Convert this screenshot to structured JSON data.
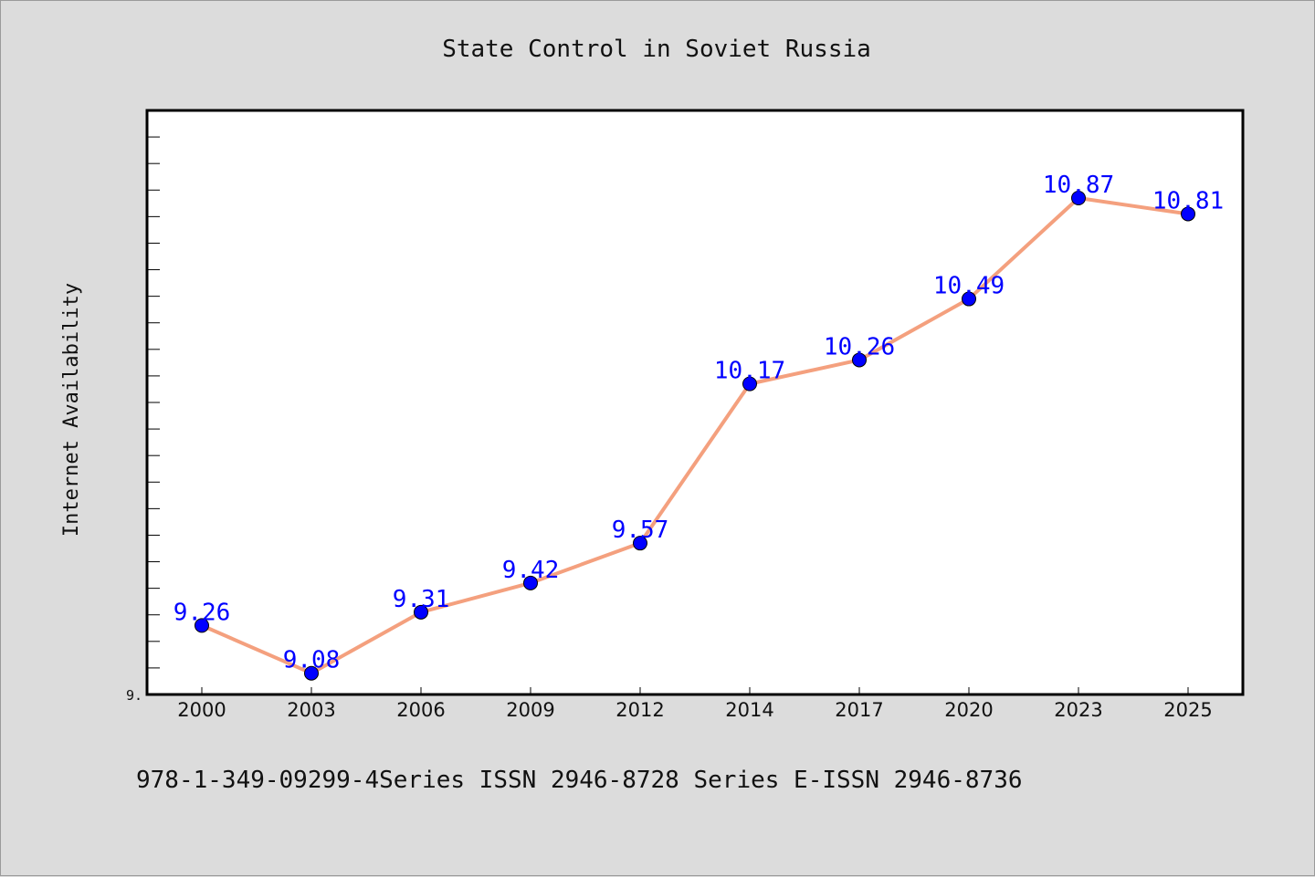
{
  "chart_data": {
    "type": "line",
    "title": "State Control in Soviet Russia",
    "xlabel": "",
    "ylabel": "Internet Availability",
    "categories": [
      "2000",
      "2003",
      "2006",
      "2009",
      "2012",
      "2014",
      "2017",
      "2020",
      "2023",
      "2025"
    ],
    "series": [
      {
        "values": [
          9.26,
          9.08,
          9.31,
          9.42,
          9.57,
          10.17,
          10.26,
          10.49,
          10.87,
          10.81
        ],
        "labels": [
          "9.26",
          "9.08",
          "9.31",
          "9.42",
          "9.57",
          "10.17",
          "10.26",
          "10.49",
          "10.87",
          "10.81"
        ],
        "line_color": "#f4a07e",
        "marker_color": "#0000ff"
      }
    ],
    "ylim": [
      9.0,
      11.2
    ],
    "y_tick_label_min": "9.",
    "grid": false,
    "legend": "none"
  },
  "footer_text": "978-1-349-09299-4Series ISSN 2946-8728 Series E-ISSN 2946-8736"
}
